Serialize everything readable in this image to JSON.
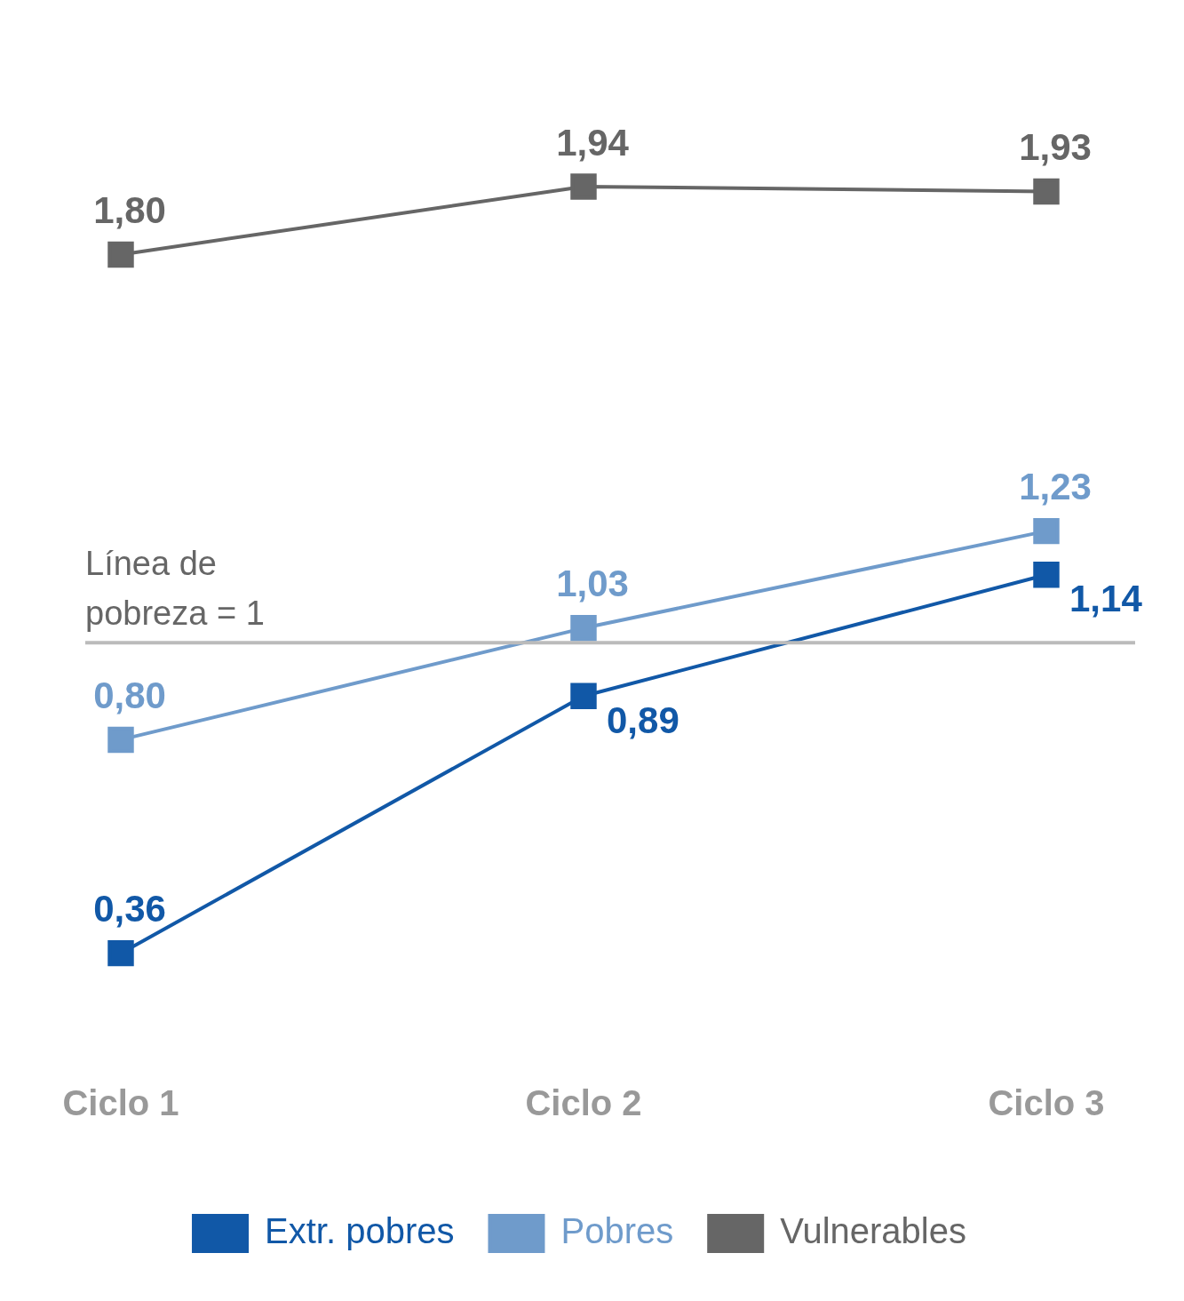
{
  "chart_data": {
    "type": "line",
    "categories": [
      "Ciclo 1",
      "Ciclo 2",
      "Ciclo 3"
    ],
    "series": [
      {
        "name": "Extr. pobres",
        "color": "#1158a7",
        "values": [
          0.36,
          0.89,
          1.14
        ],
        "value_labels": [
          "0,36",
          "0,89",
          "1,14"
        ]
      },
      {
        "name": "Pobres",
        "color": "#6f9bcb",
        "values": [
          0.8,
          1.03,
          1.23
        ],
        "value_labels": [
          "0,80",
          "1,03",
          "1,23"
        ]
      },
      {
        "name": "Vulnerables",
        "color": "#666666",
        "values": [
          1.8,
          1.94,
          1.93
        ],
        "value_labels": [
          "1,80",
          "1,94",
          "1,93"
        ]
      }
    ],
    "ref_lines": [
      {
        "axis": "y",
        "value": 1,
        "label": "Línea de pobreza = 1",
        "color": "#bbbbbb"
      }
    ],
    "relative": false,
    "marker": "square",
    "legend": "bottom",
    "grid": false
  }
}
